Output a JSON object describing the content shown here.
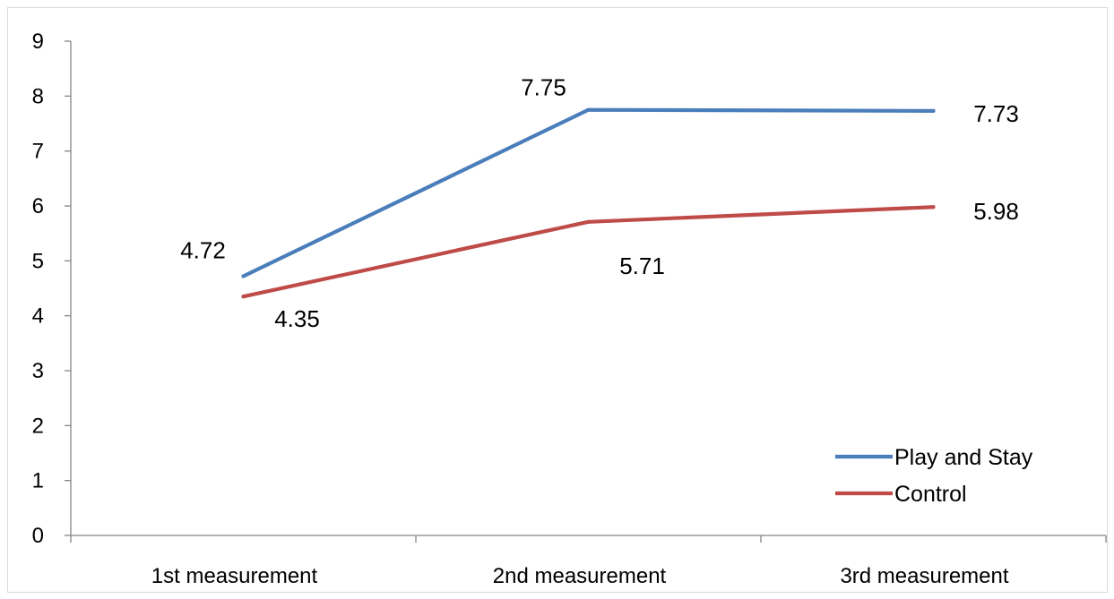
{
  "chart_data": {
    "type": "line",
    "title": "",
    "xlabel": "",
    "ylabel": "",
    "categories": [
      "1st measurement",
      "2nd measurement",
      "3rd measurement"
    ],
    "ylim": [
      0,
      9
    ],
    "yticks": [
      "0",
      "1",
      "2",
      "3",
      "4",
      "5",
      "6",
      "7",
      "8",
      "9"
    ],
    "grid": false,
    "legend_position": "bottom-right",
    "series": [
      {
        "name": "Play and Stay",
        "color": "#4a7ebb",
        "values": [
          4.72,
          7.75,
          7.73
        ],
        "labels": [
          "4.72",
          "7.75",
          "7.73"
        ]
      },
      {
        "name": "Control",
        "color": "#be4b48",
        "values": [
          4.35,
          5.71,
          5.98
        ],
        "labels": [
          "4.35",
          "5.71",
          "5.98"
        ]
      }
    ]
  }
}
